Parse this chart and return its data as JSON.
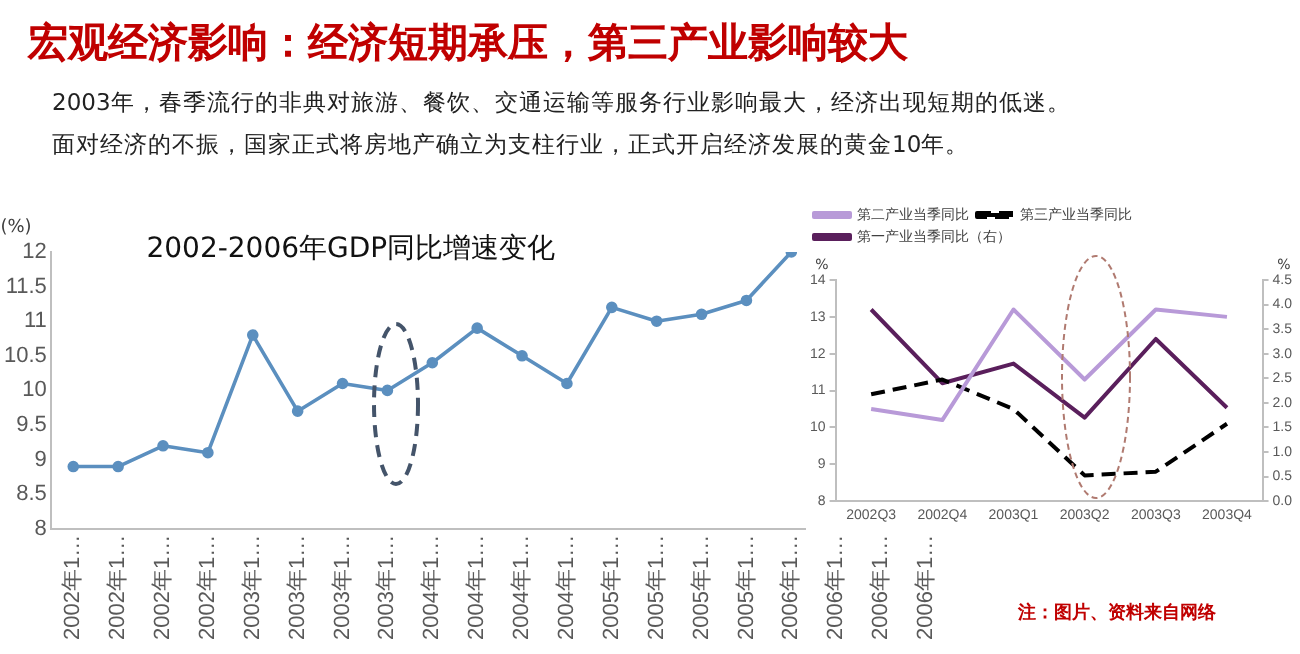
{
  "chart_data": [
    {
      "type": "other",
      "title": "宏观经济影响：经济短期承压，第三产业影响较大",
      "annotations": [
        "2003年，春季流行的非典对旅游、餐饮、交通运输等服务行业影响最大，经济出现短期的低迷。",
        "面对经济的不振，国家正式将房地产确立为支柱行业，正式开启经济发展的黄金10年。",
        "注：图片、资料来自网络"
      ]
    },
    {
      "type": "line",
      "title": "2002-2006年GDP同比增速变化",
      "ylabel": "(%)",
      "categories": [
        "2002年1…",
        "2002年1…",
        "2002年1…",
        "2002年1…",
        "2003年1…",
        "2003年1…",
        "2003年1…",
        "2003年1…",
        "2004年1…",
        "2004年1…",
        "2004年1…",
        "2004年1…",
        "2005年1…",
        "2005年1…",
        "2005年1…",
        "2005年1…",
        "2006年1…",
        "2006年1…",
        "2006年1…",
        "2006年1…"
      ],
      "values": [
        8.9,
        8.9,
        9.2,
        9.1,
        10.8,
        9.7,
        10.1,
        10.0,
        10.4,
        10.9,
        10.5,
        10.1,
        11.2,
        11.0,
        11.1,
        11.3,
        12.0,
        null,
        null,
        null
      ],
      "color": "#5b8fbf",
      "marker": "circle",
      "grid": false,
      "ylim": [
        8,
        12
      ],
      "yticks": [
        8,
        8.5,
        9,
        9.5,
        10,
        10.5,
        11,
        11.5,
        12
      ]
    },
    {
      "type": "line",
      "ylabel": "%",
      "y2label": "%",
      "categories": [
        "2002Q3",
        "2002Q4",
        "2003Q1",
        "2003Q2",
        "2003Q3",
        "2003Q4"
      ],
      "series": [
        {
          "name": "第二产业当季同比",
          "color": "#b89ad8",
          "values": [
            10.5,
            10.2,
            13.2,
            11.3,
            13.2,
            13.0
          ]
        },
        {
          "name": "第三产业当季同比",
          "color": "#000000",
          "line_style": "dashed",
          "values": [
            10.9,
            11.3,
            10.5,
            8.7,
            8.8,
            10.1
          ]
        },
        {
          "name": "第一产业当季同比（右）",
          "color": "#5a1f5c",
          "axis": "y2",
          "values": [
            3.9,
            2.4,
            2.8,
            1.7,
            3.3,
            1.9
          ]
        }
      ],
      "marker": "none",
      "grid": false,
      "legend": "top",
      "ylim": [
        8,
        14
      ],
      "yticks": [
        8,
        9,
        10,
        11,
        12,
        13,
        14
      ],
      "y2lim": [
        0,
        4.5
      ],
      "y2ticks": [
        {
          "value": 0,
          "label": "0.0"
        },
        {
          "value": 0.5,
          "label": "0.5"
        },
        {
          "value": 1,
          "label": "1.0"
        },
        {
          "value": 1.5,
          "label": "1.5"
        },
        {
          "value": 2,
          "label": "2.0"
        },
        {
          "value": 2.5,
          "label": "2.5"
        },
        {
          "value": 3,
          "label": "3.0"
        },
        {
          "value": 3.5,
          "label": "3.5"
        },
        {
          "value": 4,
          "label": "4.0"
        },
        {
          "value": 4.5,
          "label": "4.5"
        }
      ]
    }
  ]
}
